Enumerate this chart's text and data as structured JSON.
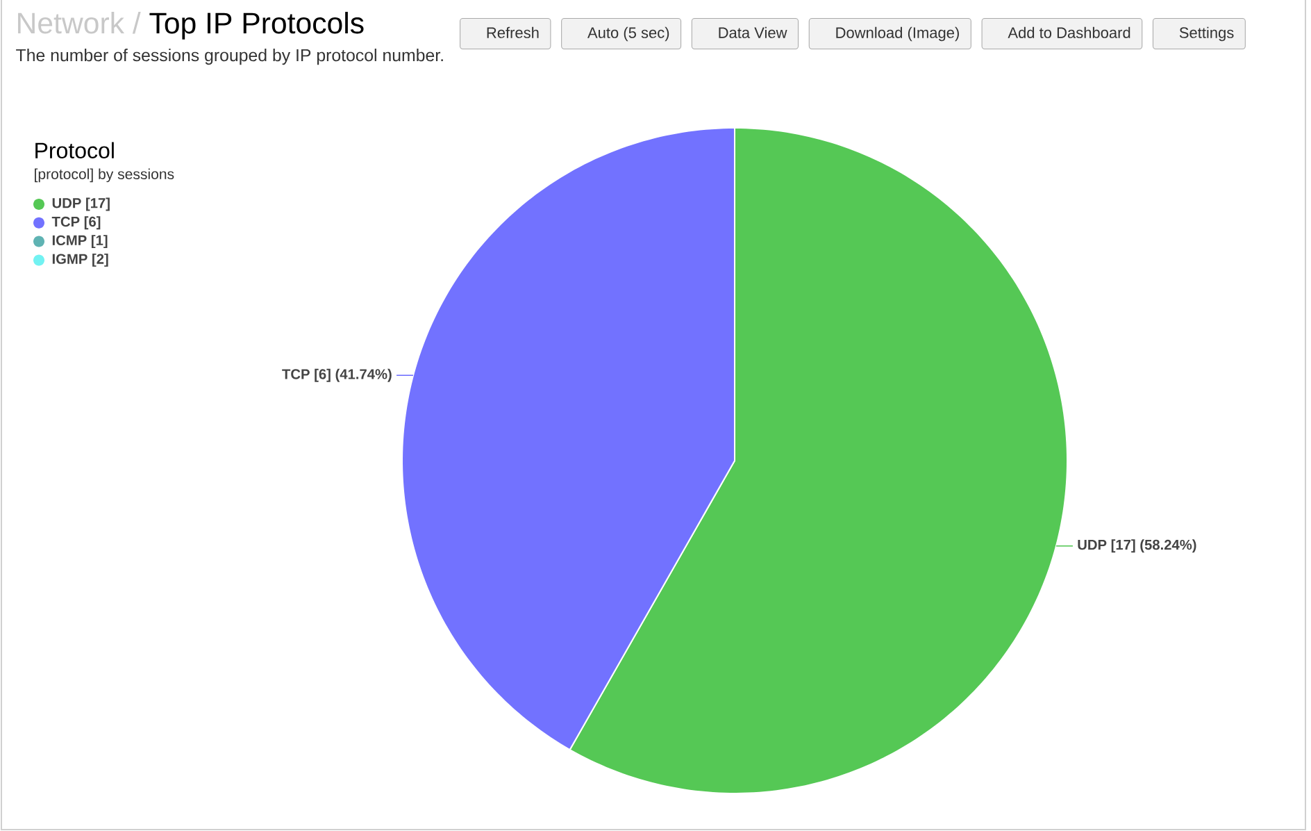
{
  "chart_data": {
    "type": "pie",
    "title": "Top IP Protocols",
    "subtitle": "The number of sessions grouped by IP protocol number.",
    "categories": [
      "UDP [17]",
      "TCP [6]",
      "ICMP [1]",
      "IGMP [2]"
    ],
    "values": [
      58.24,
      41.74,
      null,
      null
    ],
    "colors": [
      "#55c855",
      "#7272ff",
      "#5fb3b3",
      "#72f2f2"
    ],
    "value_labels": [
      "UDP [17] (58.24%)",
      "TCP [6] (41.74%)",
      null,
      null
    ],
    "legend": "top left",
    "legend_title": "Protocol",
    "annotations": [
      "Network /",
      "[protocol] by sessions",
      "Refresh",
      "Auto (5 sec)",
      "Data View",
      "Download (Image)",
      "Add to Dashboard",
      "Settings"
    ]
  }
}
